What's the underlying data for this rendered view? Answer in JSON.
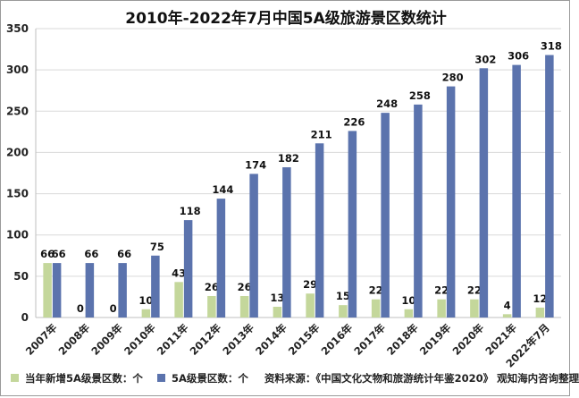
{
  "chart_data": {
    "type": "bar",
    "title": "2010年-2022年7月中国5A级旅游景区数统计",
    "categories": [
      "2007年",
      "2008年",
      "2009年",
      "2010年",
      "2011年",
      "2012年",
      "2013年",
      "2014年",
      "2015年",
      "2016年",
      "2017年",
      "2018年",
      "2019年",
      "2020年",
      "2021年",
      "2022年7月"
    ],
    "series": [
      {
        "name": "当年新增5A级景区数：个",
        "color": "#c4d79b",
        "values": [
          66,
          0,
          0,
          10,
          43,
          26,
          26,
          13,
          29,
          15,
          22,
          10,
          22,
          22,
          4,
          12
        ]
      },
      {
        "name": "5A级景区数：个",
        "color": "#5b73ad",
        "values": [
          66,
          66,
          66,
          75,
          118,
          144,
          174,
          182,
          211,
          226,
          248,
          258,
          280,
          302,
          306,
          318
        ]
      }
    ],
    "ylim": [
      0,
      350
    ],
    "yticks": [
      0,
      50,
      100,
      150,
      200,
      250,
      300,
      350
    ],
    "grid": true,
    "legend_position": "bottom-left"
  },
  "source_text": "资料来源：《中国文化文物和旅游统计年鉴2020》 观知海内咨询整理"
}
